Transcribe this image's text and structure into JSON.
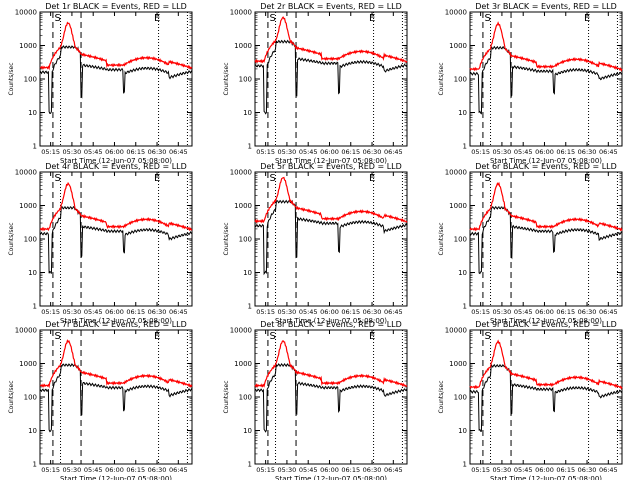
{
  "colors": {
    "events": "#000000",
    "lld": "#ff0000",
    "axis": "#000000"
  },
  "chart_data": [
    {
      "type": "line",
      "title": "Det 1r BLACK = Events, RED = LLD",
      "xlabel": "Start Time (12-Jun-07 05:08:00)",
      "ylabel": "Counts/sec",
      "y_scale": "log",
      "ylim": [
        1,
        10000
      ],
      "xlim": [
        0,
        100
      ],
      "x_tick_labels": [
        "05:15",
        "05:30",
        "05:45",
        "06:00",
        "06:15",
        "06:30",
        "06:45"
      ],
      "y_tick_labels": [
        "1",
        "10",
        "100",
        "1000",
        "10000"
      ],
      "annotations": [
        "S",
        "E"
      ],
      "curve": "standard",
      "series": [
        {
          "name": "BLACK = Events",
          "color": "#000000"
        },
        {
          "name": "RED = LLD",
          "color": "#ff0000"
        }
      ]
    },
    {
      "type": "line",
      "title": "Det 2r BLACK = Events, RED = LLD",
      "xlabel": "Start Time (12-Jun-07 05:08:00)",
      "ylabel": "Counts/sec",
      "y_scale": "log",
      "ylim": [
        1,
        10000
      ],
      "xlim": [
        0,
        100
      ],
      "x_tick_labels": [
        "05:15",
        "05:30",
        "05:45",
        "06:00",
        "06:15",
        "06:30",
        "06:45"
      ],
      "y_tick_labels": [
        "1",
        "10",
        "100",
        "1000",
        "10000"
      ],
      "annotations": [
        "S",
        "E"
      ],
      "curve": "high",
      "series": [
        {
          "name": "BLACK = Events",
          "color": "#000000"
        },
        {
          "name": "RED = LLD",
          "color": "#ff0000"
        }
      ]
    },
    {
      "type": "line",
      "title": "Det 3r BLACK = Events, RED = LLD",
      "xlabel": "Start Time (12-Jun-07 05:08:00)",
      "ylabel": "Counts/sec",
      "y_scale": "log",
      "ylim": [
        1,
        10000
      ],
      "xlim": [
        0,
        100
      ],
      "x_tick_labels": [
        "05:15",
        "05:30",
        "05:45",
        "06:00",
        "06:15",
        "06:30",
        "06:45"
      ],
      "y_tick_labels": [
        "1",
        "10",
        "100",
        "1000",
        "10000"
      ],
      "annotations": [
        "S",
        "E"
      ],
      "curve": "low",
      "series": [
        {
          "name": "BLACK = Events",
          "color": "#000000"
        },
        {
          "name": "RED = LLD",
          "color": "#ff0000"
        }
      ]
    },
    {
      "type": "line",
      "title": "Det 4r BLACK = Events, RED = LLD",
      "xlabel": "Start Time (12-Jun-07 05:08:00)",
      "ylabel": "Counts/sec",
      "y_scale": "log",
      "ylim": [
        1,
        10000
      ],
      "xlim": [
        0,
        100
      ],
      "x_tick_labels": [
        "05:15",
        "05:30",
        "05:45",
        "06:00",
        "06:15",
        "06:30",
        "06:45"
      ],
      "y_tick_labels": [
        "1",
        "10",
        "100",
        "1000",
        "10000"
      ],
      "annotations": [
        "S",
        "E"
      ],
      "curve": "low",
      "series": [
        {
          "name": "BLACK = Events",
          "color": "#000000"
        },
        {
          "name": "RED = LLD",
          "color": "#ff0000"
        }
      ]
    },
    {
      "type": "line",
      "title": "Det 5r BLACK = Events, RED = LLD",
      "xlabel": "Start Time (12-Jun-07 05:08:00)",
      "ylabel": "Counts/sec",
      "y_scale": "log",
      "ylim": [
        1,
        10000
      ],
      "xlim": [
        0,
        100
      ],
      "x_tick_labels": [
        "05:15",
        "05:30",
        "05:45",
        "06:00",
        "06:15",
        "06:30",
        "06:45"
      ],
      "y_tick_labels": [
        "1",
        "10",
        "100",
        "1000",
        "10000"
      ],
      "annotations": [
        "S",
        "E"
      ],
      "curve": "high",
      "series": [
        {
          "name": "BLACK = Events",
          "color": "#000000"
        },
        {
          "name": "RED = LLD",
          "color": "#ff0000"
        }
      ]
    },
    {
      "type": "line",
      "title": "Det 6r BLACK = Events, RED = LLD",
      "xlabel": "Start Time (12-Jun-07 05:08:00)",
      "ylabel": "Counts/sec",
      "y_scale": "log",
      "ylim": [
        1,
        10000
      ],
      "xlim": [
        0,
        100
      ],
      "x_tick_labels": [
        "05:15",
        "05:30",
        "05:45",
        "06:00",
        "06:15",
        "06:30",
        "06:45"
      ],
      "y_tick_labels": [
        "1",
        "10",
        "100",
        "1000",
        "10000"
      ],
      "annotations": [
        "S",
        "E"
      ],
      "curve": "low",
      "series": [
        {
          "name": "BLACK = Events",
          "color": "#000000"
        },
        {
          "name": "RED = LLD",
          "color": "#ff0000"
        }
      ]
    },
    {
      "type": "line",
      "title": "Det 7r BLACK = Events, RED = LLD",
      "xlabel": "Start Time (12-Jun-07 05:08:00)",
      "ylabel": "Counts/sec",
      "y_scale": "log",
      "ylim": [
        1,
        10000
      ],
      "xlim": [
        0,
        100
      ],
      "x_tick_labels": [
        "05:15",
        "05:30",
        "05:45",
        "06:00",
        "06:15",
        "06:30",
        "06:45"
      ],
      "y_tick_labels": [
        "1",
        "10",
        "100",
        "1000",
        "10000"
      ],
      "annotations": [
        "S",
        "E"
      ],
      "curve": "standard",
      "series": [
        {
          "name": "BLACK = Events",
          "color": "#000000"
        },
        {
          "name": "RED = LLD",
          "color": "#ff0000"
        }
      ]
    },
    {
      "type": "line",
      "title": "Det 8r BLACK = Events, RED = LLD",
      "xlabel": "Start Time (12-Jun-07 05:08:00)",
      "ylabel": "Counts/sec",
      "y_scale": "log",
      "ylim": [
        1,
        10000
      ],
      "xlim": [
        0,
        100
      ],
      "x_tick_labels": [
        "05:15",
        "05:30",
        "05:45",
        "06:00",
        "06:15",
        "06:30",
        "06:45"
      ],
      "y_tick_labels": [
        "1",
        "10",
        "100",
        "1000",
        "10000"
      ],
      "annotations": [
        "S",
        "E"
      ],
      "curve": "standard",
      "series": [
        {
          "name": "BLACK = Events",
          "color": "#000000"
        },
        {
          "name": "RED = LLD",
          "color": "#ff0000"
        }
      ]
    },
    {
      "type": "line",
      "title": "Det 9r BLACK = Events, RED = LLD",
      "xlabel": "Start Time (12-Jun-07 05:08:00)",
      "ylabel": "Counts/sec",
      "y_scale": "log",
      "ylim": [
        1,
        10000
      ],
      "xlim": [
        0,
        100
      ],
      "x_tick_labels": [
        "05:15",
        "05:30",
        "05:45",
        "06:00",
        "06:15",
        "06:30",
        "06:45"
      ],
      "y_tick_labels": [
        "1",
        "10",
        "100",
        "1000",
        "10000"
      ],
      "annotations": [
        "S",
        "E"
      ],
      "curve": "low",
      "series": [
        {
          "name": "BLACK = Events",
          "color": "#000000"
        },
        {
          "name": "RED = LLD",
          "color": "#ff0000"
        }
      ]
    }
  ]
}
